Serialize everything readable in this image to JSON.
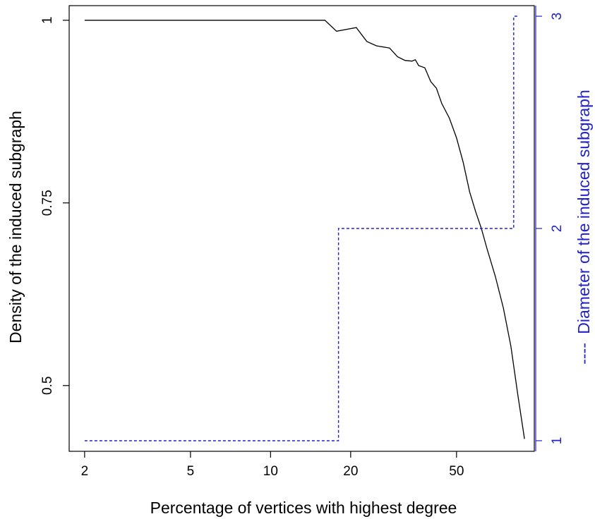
{
  "chart_data": {
    "type": "line",
    "xlabel": "Percentage of vertices with highest degree",
    "ylabel": "Density of the induced subgraph",
    "y2label": "Diameter of the induced subgraph",
    "y2label_prefix": "----",
    "x_scale": "log",
    "xlim": [
      1.75,
      98
    ],
    "ylim": [
      0.41,
      1.02
    ],
    "y2lim": [
      0.95,
      3.05
    ],
    "x_ticks": [
      2,
      5,
      10,
      20,
      50
    ],
    "x_tick_labels": [
      "2",
      "5",
      "10",
      "20",
      "50"
    ],
    "y_ticks": [
      1,
      0.75,
      0.5
    ],
    "y_tick_labels": [
      "1",
      "0.75",
      "0.5"
    ],
    "y2_ticks": [
      3,
      2,
      1
    ],
    "y2_tick_labels": [
      "3",
      "2",
      "1"
    ],
    "grid": false,
    "legend": "none",
    "series": [
      {
        "axis": "left",
        "style": "solid",
        "color": "#000000",
        "x": [
          2,
          16,
          17.7,
          21,
          23,
          25,
          28,
          30,
          32,
          34,
          35,
          36,
          38,
          40,
          42,
          44,
          47,
          50,
          53,
          56,
          59,
          62,
          65,
          70,
          75,
          80,
          85,
          90
        ],
        "y": [
          1.0,
          1.0,
          0.985,
          0.99,
          0.971,
          0.965,
          0.962,
          0.95,
          0.945,
          0.944,
          0.946,
          0.938,
          0.935,
          0.916,
          0.907,
          0.886,
          0.866,
          0.839,
          0.805,
          0.765,
          0.738,
          0.715,
          0.688,
          0.649,
          0.606,
          0.554,
          0.487,
          0.427
        ]
      },
      {
        "axis": "right",
        "style": "dashed",
        "color": "#2222cc",
        "x": [
          2,
          16,
          16,
          18,
          18,
          82,
          82,
          86
        ],
        "y": [
          1,
          1,
          1,
          1,
          2,
          2,
          3,
          3
        ]
      }
    ]
  },
  "colors": {
    "axis": "#000000",
    "y2_axis": "#2222cc",
    "background": "#ffffff"
  }
}
